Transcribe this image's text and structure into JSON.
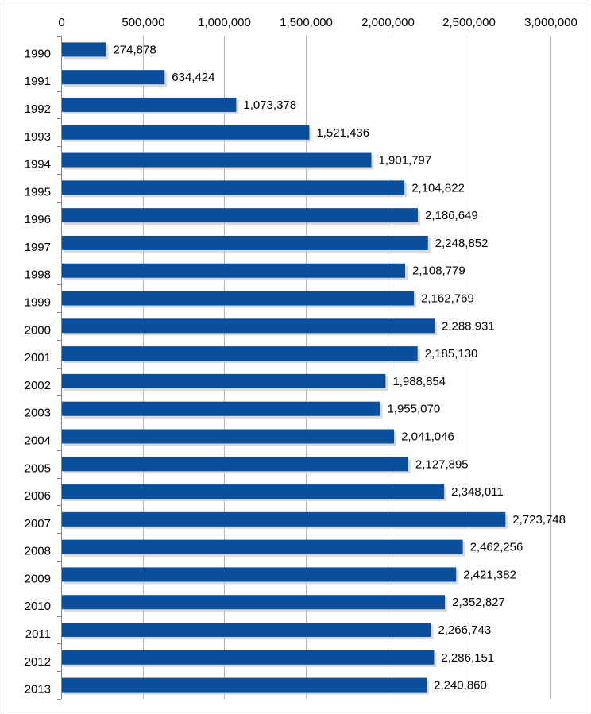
{
  "chart_data": {
    "type": "bar",
    "orientation": "horizontal",
    "title": "",
    "xlabel": "",
    "ylabel": "",
    "xlim": [
      0,
      3000000
    ],
    "x_ticks": [
      0,
      500000,
      1000000,
      1500000,
      2000000,
      2500000,
      3000000
    ],
    "x_tick_labels": [
      "0",
      "500,000",
      "1,000,000",
      "1,500,000",
      "2,000,000",
      "2,500,000",
      "3,000,000"
    ],
    "x_axis_position": "top",
    "grid": true,
    "legend": "none",
    "bar_color": "#0a4f9c",
    "categories": [
      "1990",
      "1991",
      "1992",
      "1993",
      "1994",
      "1995",
      "1996",
      "1997",
      "1998",
      "1999",
      "2000",
      "2001",
      "2002",
      "2003",
      "2004",
      "2005",
      "2006",
      "2007",
      "2008",
      "2009",
      "2010",
      "2011",
      "2012",
      "2013"
    ],
    "values": [
      274878,
      634424,
      1073378,
      1521436,
      1901797,
      2104822,
      2186649,
      2248852,
      2108779,
      2162769,
      2288931,
      2185130,
      1988854,
      1955070,
      2041046,
      2127895,
      2348011,
      2723748,
      2462256,
      2421382,
      2352827,
      2266743,
      2286151,
      2240860
    ],
    "value_labels": [
      "274,878",
      "634,424",
      "1,073,378",
      "1,521,436",
      "1,901,797",
      "2,104,822",
      "2,186,649",
      "2,248,852",
      "2,108,779",
      "2,162,769",
      "2,288,931",
      "2,185,130",
      "1,988,854",
      "1,955,070",
      "2,041,046",
      "2,127,895",
      "2,348,011",
      "2,723,748",
      "2,462,256",
      "2,421,382",
      "2,352,827",
      "2,266,743",
      "2,286,151",
      "2,240,860"
    ]
  }
}
